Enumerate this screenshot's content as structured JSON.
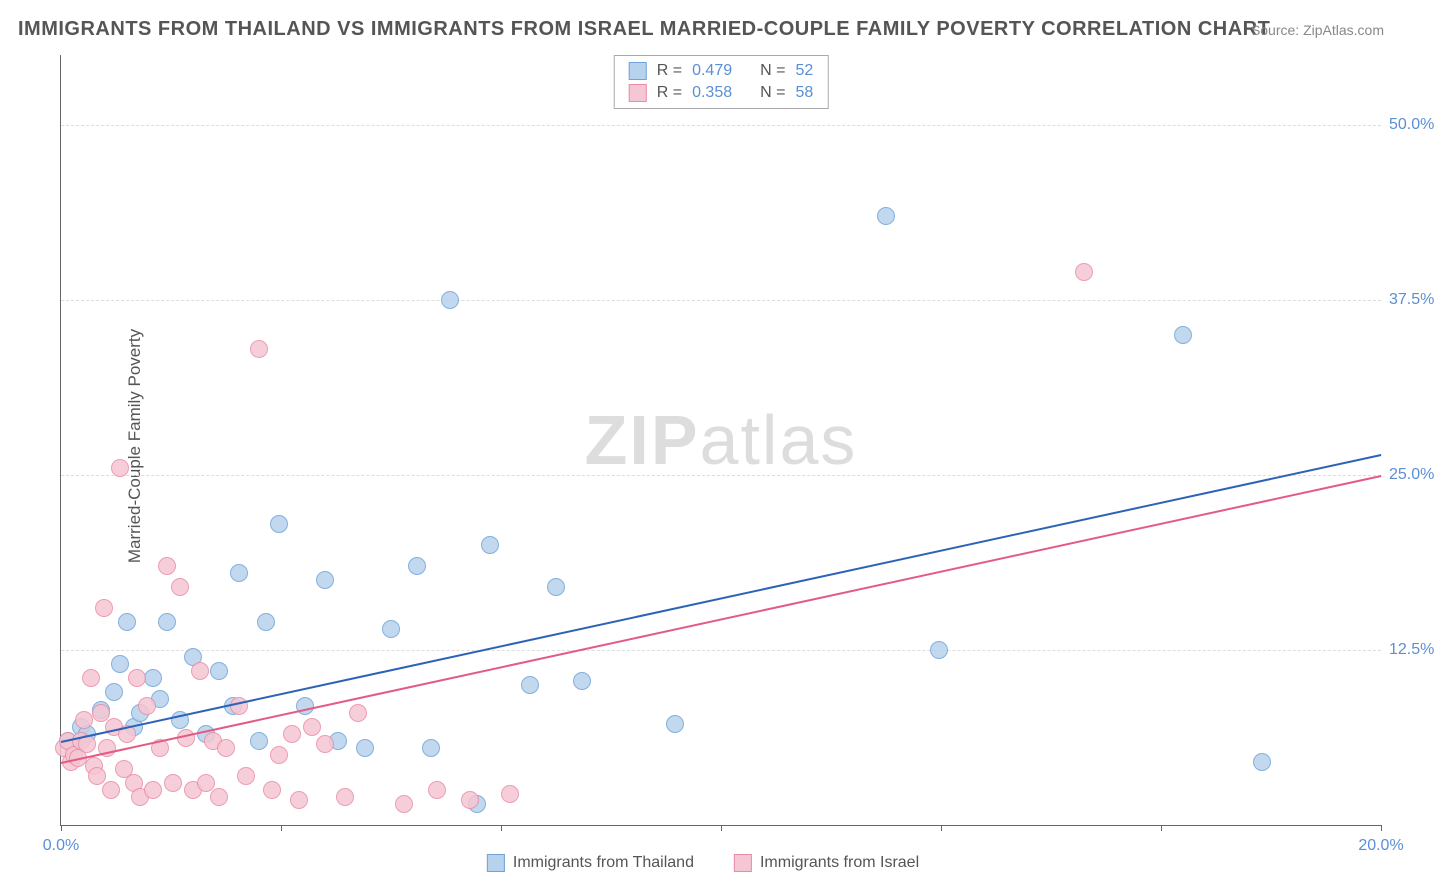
{
  "title": "IMMIGRANTS FROM THAILAND VS IMMIGRANTS FROM ISRAEL MARRIED-COUPLE FAMILY POVERTY CORRELATION CHART",
  "source": "Source: ZipAtlas.com",
  "watermark_a": "ZIP",
  "watermark_b": "atlas",
  "y_axis_title": "Married-Couple Family Poverty",
  "chart": {
    "type": "scatter",
    "xlim": [
      0,
      20
    ],
    "ylim": [
      0,
      55
    ],
    "x_ticks": [
      0,
      3.33,
      6.67,
      10,
      13.33,
      16.67,
      20
    ],
    "x_tick_labels": {
      "0": "0.0%",
      "20": "20.0%"
    },
    "y_ticks": [
      12.5,
      25,
      37.5,
      50
    ],
    "y_tick_labels": [
      "12.5%",
      "25.0%",
      "37.5%",
      "50.0%"
    ],
    "grid_color": "#dddddd",
    "background_color": "#ffffff",
    "axis_color": "#666666",
    "tick_label_color": "#5a8fd6",
    "marker_radius": 9,
    "marker_border": 1,
    "series": [
      {
        "name": "Immigrants from Thailand",
        "fill": "#b7d2ec",
        "stroke": "#6fa3d9",
        "line_color": "#2d63b7",
        "R": "0.479",
        "N": "52",
        "trend": {
          "x1": 0,
          "y1": 6.0,
          "x2": 20,
          "y2": 26.5
        },
        "points": [
          [
            0.1,
            6.0
          ],
          [
            0.2,
            5.5
          ],
          [
            0.3,
            7.0
          ],
          [
            0.4,
            6.5
          ],
          [
            0.6,
            8.2
          ],
          [
            0.8,
            9.5
          ],
          [
            0.9,
            11.5
          ],
          [
            1.0,
            14.5
          ],
          [
            1.1,
            7.0
          ],
          [
            1.2,
            8.0
          ],
          [
            1.4,
            10.5
          ],
          [
            1.5,
            9.0
          ],
          [
            1.6,
            14.5
          ],
          [
            1.8,
            7.5
          ],
          [
            2.0,
            12.0
          ],
          [
            2.2,
            6.5
          ],
          [
            2.4,
            11.0
          ],
          [
            2.6,
            8.5
          ],
          [
            2.7,
            18.0
          ],
          [
            3.0,
            6.0
          ],
          [
            3.1,
            14.5
          ],
          [
            3.3,
            21.5
          ],
          [
            3.7,
            8.5
          ],
          [
            4.0,
            17.5
          ],
          [
            4.2,
            6.0
          ],
          [
            4.6,
            5.5
          ],
          [
            5.0,
            14.0
          ],
          [
            5.4,
            18.5
          ],
          [
            5.6,
            5.5
          ],
          [
            5.9,
            37.5
          ],
          [
            6.3,
            1.5
          ],
          [
            6.5,
            20.0
          ],
          [
            7.1,
            10.0
          ],
          [
            7.5,
            17.0
          ],
          [
            7.9,
            10.3
          ],
          [
            9.3,
            7.2
          ],
          [
            12.5,
            43.5
          ],
          [
            13.3,
            12.5
          ],
          [
            17.0,
            35.0
          ],
          [
            18.2,
            4.5
          ]
        ]
      },
      {
        "name": "Immigrants from Israel",
        "fill": "#f5c6d3",
        "stroke": "#e98da6",
        "line_color": "#e35b84",
        "R": "0.358",
        "N": "58",
        "trend": {
          "x1": 0,
          "y1": 4.5,
          "x2": 20,
          "y2": 25.0
        },
        "points": [
          [
            0.05,
            5.5
          ],
          [
            0.1,
            6.0
          ],
          [
            0.15,
            4.5
          ],
          [
            0.2,
            5.0
          ],
          [
            0.25,
            4.8
          ],
          [
            0.3,
            6.0
          ],
          [
            0.35,
            7.5
          ],
          [
            0.4,
            5.8
          ],
          [
            0.45,
            10.5
          ],
          [
            0.5,
            4.2
          ],
          [
            0.55,
            3.5
          ],
          [
            0.6,
            8.0
          ],
          [
            0.65,
            15.5
          ],
          [
            0.7,
            5.5
          ],
          [
            0.75,
            2.5
          ],
          [
            0.8,
            7.0
          ],
          [
            0.9,
            25.5
          ],
          [
            0.95,
            4.0
          ],
          [
            1.0,
            6.5
          ],
          [
            1.1,
            3.0
          ],
          [
            1.15,
            10.5
          ],
          [
            1.2,
            2.0
          ],
          [
            1.3,
            8.5
          ],
          [
            1.4,
            2.5
          ],
          [
            1.5,
            5.5
          ],
          [
            1.6,
            18.5
          ],
          [
            1.7,
            3.0
          ],
          [
            1.8,
            17.0
          ],
          [
            1.9,
            6.2
          ],
          [
            2.0,
            2.5
          ],
          [
            2.1,
            11.0
          ],
          [
            2.2,
            3.0
          ],
          [
            2.3,
            6.0
          ],
          [
            2.4,
            2.0
          ],
          [
            2.5,
            5.5
          ],
          [
            2.7,
            8.5
          ],
          [
            2.8,
            3.5
          ],
          [
            3.0,
            34.0
          ],
          [
            3.2,
            2.5
          ],
          [
            3.3,
            5.0
          ],
          [
            3.5,
            6.5
          ],
          [
            3.6,
            1.8
          ],
          [
            3.8,
            7.0
          ],
          [
            4.0,
            5.8
          ],
          [
            4.3,
            2.0
          ],
          [
            4.5,
            8.0
          ],
          [
            5.2,
            1.5
          ],
          [
            5.7,
            2.5
          ],
          [
            6.2,
            1.8
          ],
          [
            6.8,
            2.2
          ],
          [
            15.5,
            39.5
          ]
        ]
      }
    ]
  },
  "legend": {
    "r_label": "R =",
    "n_label": "N ="
  }
}
